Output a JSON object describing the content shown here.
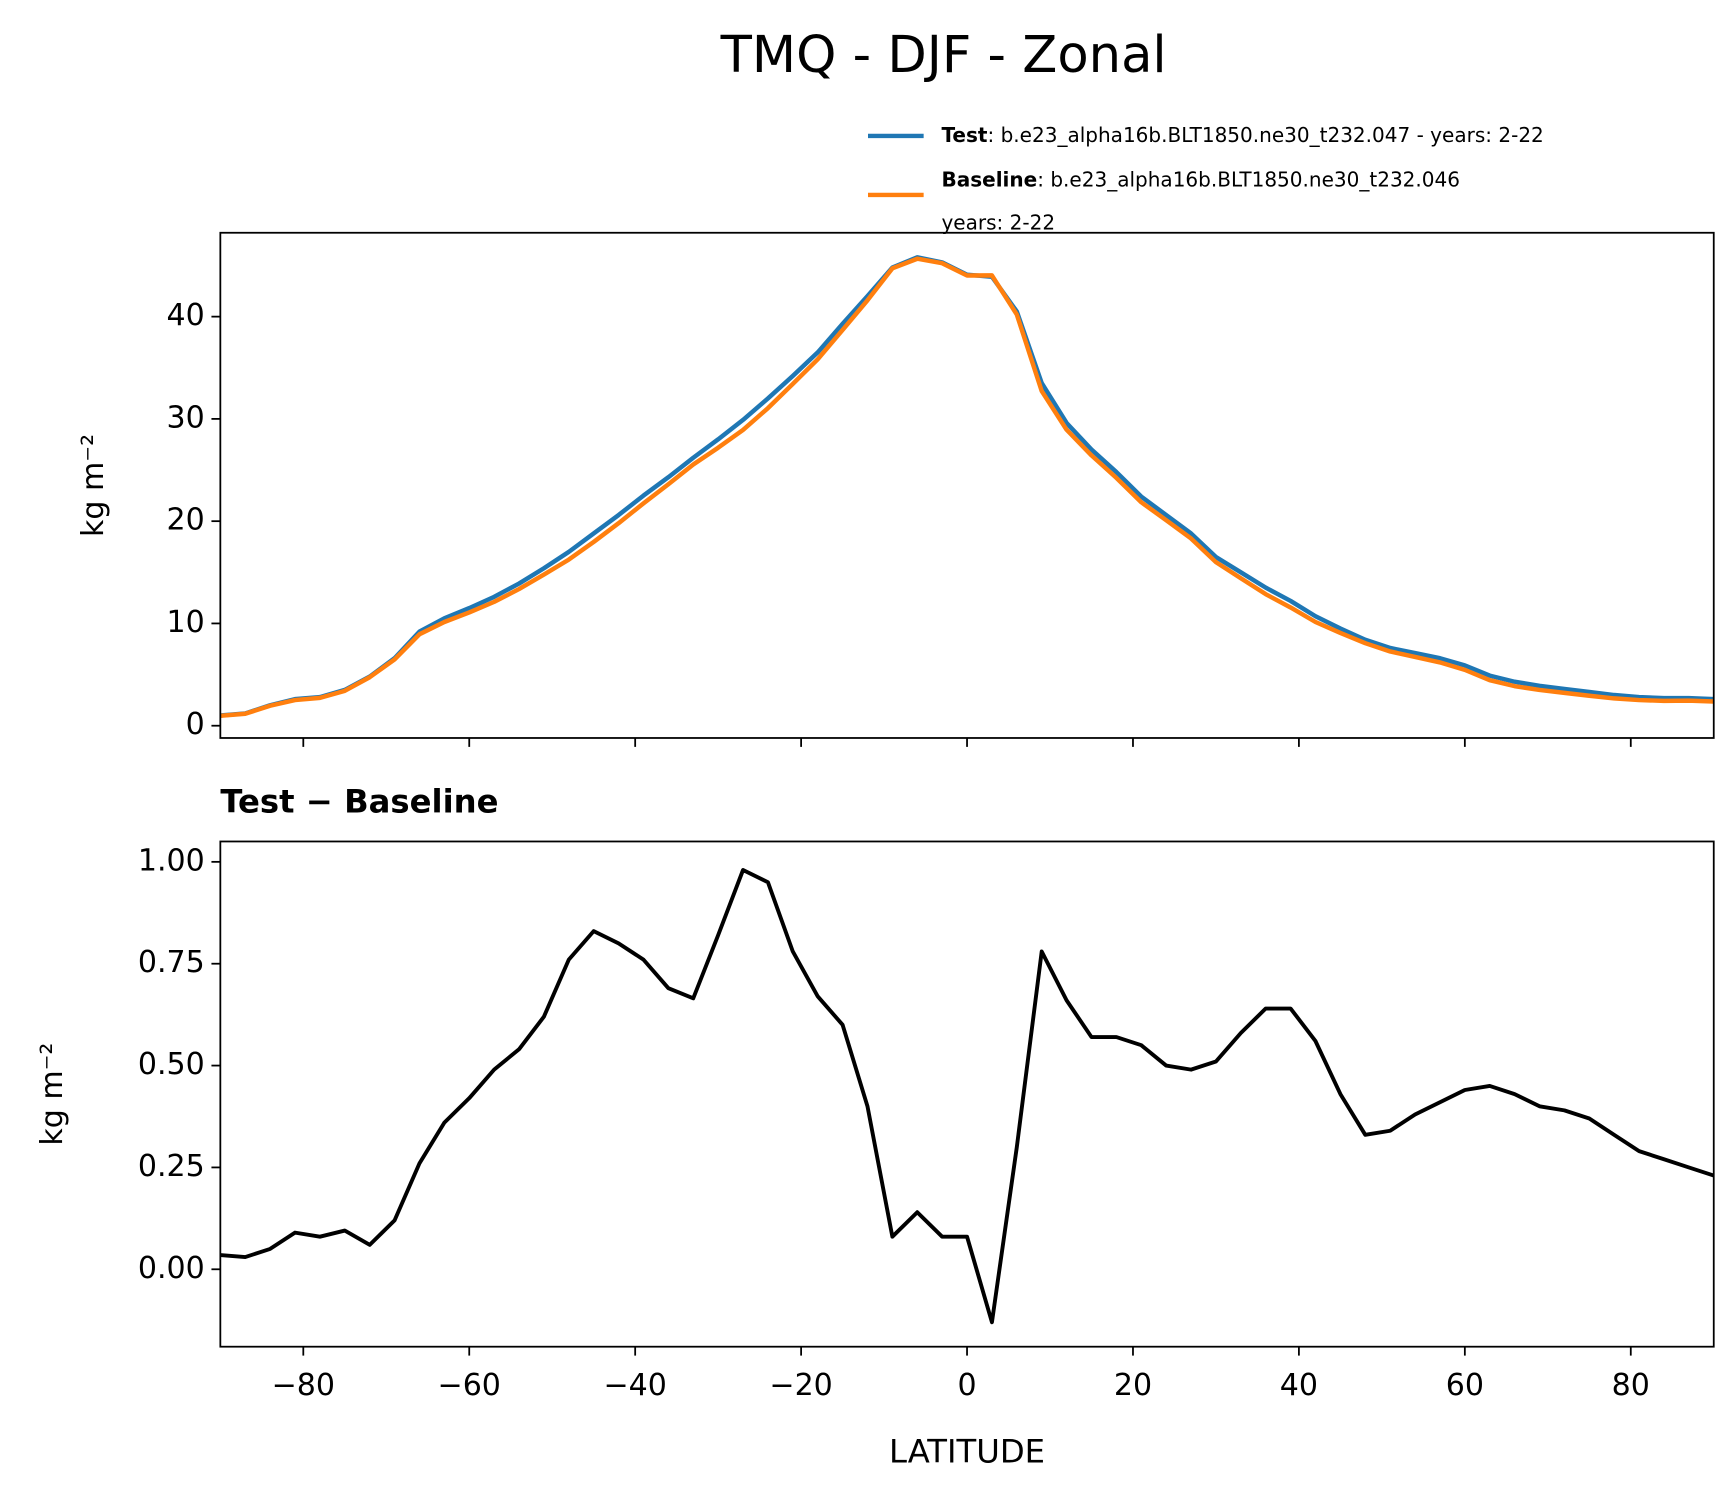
{
  "title": "TMQ - DJF - Zonal",
  "chart_data": [
    {
      "type": "line",
      "ylabel": "kg m⁻²",
      "x": [
        -90,
        -87,
        -84,
        -81,
        -78,
        -75,
        -72,
        -69,
        -66,
        -63,
        -60,
        -57,
        -54,
        -51,
        -48,
        -45,
        -42,
        -39,
        -36,
        -33,
        -30,
        -27,
        -24,
        -21,
        -18,
        -15,
        -12,
        -9,
        -6,
        -3,
        0,
        3,
        6,
        9,
        12,
        15,
        18,
        21,
        24,
        27,
        30,
        33,
        36,
        39,
        42,
        45,
        48,
        51,
        54,
        57,
        60,
        63,
        66,
        69,
        72,
        75,
        78,
        81,
        84,
        87,
        90
      ],
      "series": [
        {
          "name": "Test",
          "color": "#1f77b4",
          "label_lines": [
            ": b.e23_alpha16b.BLT1850.ne30_t232.047 - years: 2-22"
          ],
          "values": [
            1.0,
            1.2,
            2.0,
            2.6,
            2.8,
            3.5,
            4.8,
            6.6,
            9.2,
            10.5,
            11.5,
            12.6,
            13.9,
            15.4,
            17.0,
            18.8,
            20.6,
            22.5,
            24.3,
            26.2,
            28.0,
            29.9,
            32.0,
            34.2,
            36.5,
            39.3,
            42.0,
            44.8,
            45.8,
            45.3,
            44.1,
            43.9,
            40.5,
            33.5,
            29.6,
            27.0,
            24.8,
            22.4,
            20.6,
            18.8,
            16.5,
            15.0,
            13.5,
            12.2,
            10.7,
            9.5,
            8.4,
            7.6,
            7.1,
            6.6,
            5.9,
            4.9,
            4.3,
            3.9,
            3.6,
            3.3,
            3.0,
            2.8,
            2.7,
            2.7,
            2.6
          ]
        },
        {
          "name": "Baseline",
          "color": "#ff7f0e",
          "label_lines": [
            ": b.e23_alpha16b.BLT1850.ne30_t232.046",
            "years: 2-22"
          ],
          "values": [
            0.97,
            1.17,
            1.95,
            2.51,
            2.72,
            3.41,
            4.74,
            6.48,
            8.94,
            10.14,
            11.08,
            12.11,
            13.36,
            14.78,
            16.24,
            17.97,
            19.8,
            21.74,
            23.61,
            25.54,
            27.18,
            28.92,
            31.05,
            33.42,
            35.83,
            38.7,
            41.6,
            44.72,
            45.66,
            45.22,
            44.02,
            44.03,
            40.2,
            32.72,
            28.94,
            26.43,
            24.23,
            21.85,
            20.1,
            18.31,
            15.99,
            14.42,
            12.86,
            11.56,
            10.14,
            9.07,
            8.07,
            7.26,
            6.72,
            6.19,
            5.46,
            4.45,
            3.87,
            3.5,
            3.21,
            2.93,
            2.67,
            2.51,
            2.43,
            2.45,
            2.37
          ]
        }
      ],
      "xlim": [
        -90,
        90
      ],
      "xticks": [
        -80,
        -60,
        -40,
        -20,
        0,
        20,
        40,
        60,
        80
      ],
      "xticklabels": false,
      "ylim": [
        -1.2,
        48.2
      ],
      "yticks": [
        0,
        10,
        20,
        30,
        40
      ],
      "legend": "upper right outside"
    },
    {
      "type": "line",
      "title": "Test − Baseline",
      "xlabel": "LATITUDE",
      "ylabel": "kg m⁻²",
      "x": [
        -90,
        -87,
        -84,
        -81,
        -78,
        -75,
        -72,
        -69,
        -66,
        -63,
        -60,
        -57,
        -54,
        -51,
        -48,
        -45,
        -42,
        -39,
        -36,
        -33,
        -30,
        -27,
        -24,
        -21,
        -18,
        -15,
        -12,
        -9,
        -6,
        -3,
        0,
        3,
        6,
        9,
        12,
        15,
        18,
        21,
        24,
        27,
        30,
        33,
        36,
        39,
        42,
        45,
        48,
        51,
        54,
        57,
        60,
        63,
        66,
        69,
        72,
        75,
        78,
        81,
        84,
        87,
        90
      ],
      "series": [
        {
          "color": "#000000",
          "values": [
            0.035,
            0.03,
            0.05,
            0.09,
            0.08,
            0.095,
            0.06,
            0.12,
            0.26,
            0.36,
            0.42,
            0.49,
            0.54,
            0.62,
            0.76,
            0.83,
            0.8,
            0.76,
            0.69,
            0.665,
            0.82,
            0.98,
            0.95,
            0.78,
            0.67,
            0.6,
            0.4,
            0.08,
            0.14,
            0.08,
            0.08,
            -0.13,
            0.3,
            0.78,
            0.66,
            0.57,
            0.57,
            0.55,
            0.5,
            0.49,
            0.51,
            0.58,
            0.64,
            0.64,
            0.56,
            0.43,
            0.33,
            0.34,
            0.38,
            0.41,
            0.44,
            0.45,
            0.43,
            0.4,
            0.39,
            0.37,
            0.33,
            0.29,
            0.27,
            0.25,
            0.23
          ]
        }
      ],
      "xlim": [
        -90,
        90
      ],
      "xticks": [
        {
          "value": -80,
          "label": "−80"
        },
        {
          "value": -60,
          "label": "−60"
        },
        {
          "value": -40,
          "label": "−40"
        },
        {
          "value": -20,
          "label": "−20"
        },
        0,
        20,
        40,
        60,
        80
      ],
      "xticklabels": true,
      "ylim": [
        -0.19,
        1.05
      ],
      "yticks": [
        {
          "value": 0,
          "label": "0.00"
        },
        {
          "value": 0.25,
          "label": "0.25"
        },
        {
          "value": 0.5,
          "label": "0.50"
        },
        {
          "value": 0.75,
          "label": "0.75"
        },
        {
          "value": 1,
          "label": "1.00"
        }
      ]
    }
  ]
}
